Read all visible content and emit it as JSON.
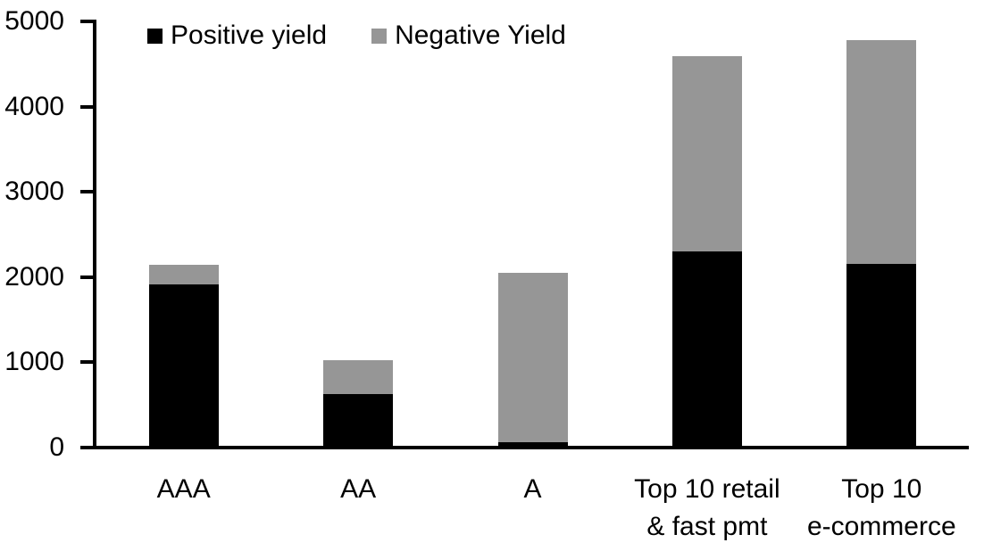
{
  "chart_data": {
    "type": "bar",
    "stacked": true,
    "categories": [
      "AAA",
      "AA",
      "A",
      "Top 10 retail\n& fast pmt",
      "Top 10\ne-commerce"
    ],
    "series": [
      {
        "name": "Positive yield",
        "color": "#000000",
        "values": [
          1890,
          610,
          40,
          2280,
          2130
        ]
      },
      {
        "name": "Negative Yield",
        "color": "#969696",
        "values": [
          230,
          390,
          1990,
          2290,
          2630
        ]
      }
    ],
    "ylim": [
      0,
      5000
    ],
    "yticks": [
      0,
      1000,
      2000,
      3000,
      4000,
      5000
    ],
    "grid": false,
    "legend_position": "top",
    "axis_color": "#000000",
    "background_color": "#ffffff"
  }
}
